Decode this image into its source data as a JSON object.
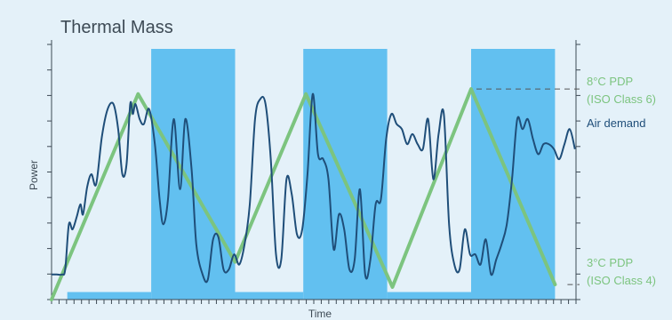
{
  "chart_data": {
    "type": "line",
    "title": "Thermal Mass",
    "xlabel": "Time",
    "ylabel": "Power",
    "colors": {
      "background": "#e4f1f9",
      "refrigeration": "#62c0f0",
      "temperature": "#7cc47f",
      "air_demand": "#1f4e79",
      "axis": "#3d4a55",
      "reference": "#555555"
    },
    "x_range": [
      0,
      100
    ],
    "y_range": [
      0,
      100
    ],
    "refrigeration_blocks": [
      {
        "x0": 3,
        "x1": 19,
        "y": 3
      },
      {
        "x0": 19,
        "x1": 35,
        "y": 100
      },
      {
        "x0": 35,
        "x1": 48,
        "y": 3
      },
      {
        "x0": 48,
        "x1": 64,
        "y": 100
      },
      {
        "x0": 64,
        "x1": 80,
        "y": 3
      },
      {
        "x0": 80,
        "x1": 96,
        "y": 100
      }
    ],
    "temperature_series": {
      "x": [
        0,
        16.5,
        35,
        48.5,
        65,
        80,
        96
      ],
      "y": [
        0,
        82,
        15,
        82,
        5,
        84,
        6
      ]
    },
    "air_demand_series": {
      "x": [
        0,
        1,
        2,
        2.6,
        3.3,
        4,
        4.8,
        5.5,
        6,
        6.8,
        7.6,
        8.5,
        9.6,
        10.7,
        11.8,
        12.7,
        13.5,
        14.3,
        15,
        15.5,
        16,
        16.8,
        17.6,
        18.6,
        19.7,
        20.6,
        21.3,
        22.2,
        23.3,
        24.5,
        25.5,
        26.7,
        27.6,
        28.8,
        29.8,
        30.8,
        31.8,
        32.8,
        33.8,
        34.8,
        35.8,
        36.8,
        37.8,
        38.8,
        39.8,
        40.8,
        41.8,
        42.8,
        43.8,
        44.8,
        45.8,
        46.8,
        47.8,
        48.8,
        49.8,
        50.8,
        51.8,
        52.8,
        53.8,
        54.8,
        55.8,
        56.8,
        57.8,
        58.8,
        59.8,
        60.8,
        61.8,
        62.8,
        63.8,
        64.8,
        65.8,
        66.8,
        67.8,
        68.8,
        69.8,
        70.8,
        71.8,
        72.8,
        73.8,
        74.8,
        75.8,
        76.8,
        77.8,
        78.8,
        79.8,
        80.8,
        81.8,
        82.8,
        83.8,
        84.8,
        85.8,
        86.8,
        87.8,
        88.8,
        89.8,
        90.8,
        91.8,
        92.8,
        93.8,
        94.8,
        95.8,
        96.8,
        97.8,
        98.8,
        99.8
      ],
      "y": [
        10,
        10,
        10,
        12,
        30,
        28,
        33,
        38,
        34,
        45,
        50,
        46,
        65,
        76,
        78,
        68,
        50,
        54,
        78,
        74,
        78,
        72,
        70,
        76,
        62,
        40,
        30,
        40,
        72,
        44,
        72,
        52,
        22,
        10,
        8,
        24,
        25,
        12,
        12,
        18,
        14,
        22,
        38,
        72,
        80,
        78,
        56,
        18,
        16,
        48,
        42,
        26,
        28,
        50,
        82,
        58,
        56,
        48,
        20,
        34,
        28,
        12,
        16,
        44,
        10,
        16,
        38,
        40,
        64,
        74,
        70,
        68,
        62,
        66,
        62,
        60,
        72,
        48,
        66,
        74,
        30,
        14,
        12,
        28,
        18,
        18,
        14,
        24,
        10,
        16,
        22,
        30,
        48,
        72,
        68,
        72,
        64,
        58,
        62,
        62,
        60,
        56,
        62,
        68,
        60
      ]
    },
    "annotations": {
      "high": {
        "line1": "8°C PDP",
        "line2": "(ISO Class 6)",
        "y": 84
      },
      "demand": {
        "text": "Air demand"
      },
      "low": {
        "line1": "3°C PDP",
        "line2": "(ISO Class 4)",
        "y": 6
      }
    }
  }
}
